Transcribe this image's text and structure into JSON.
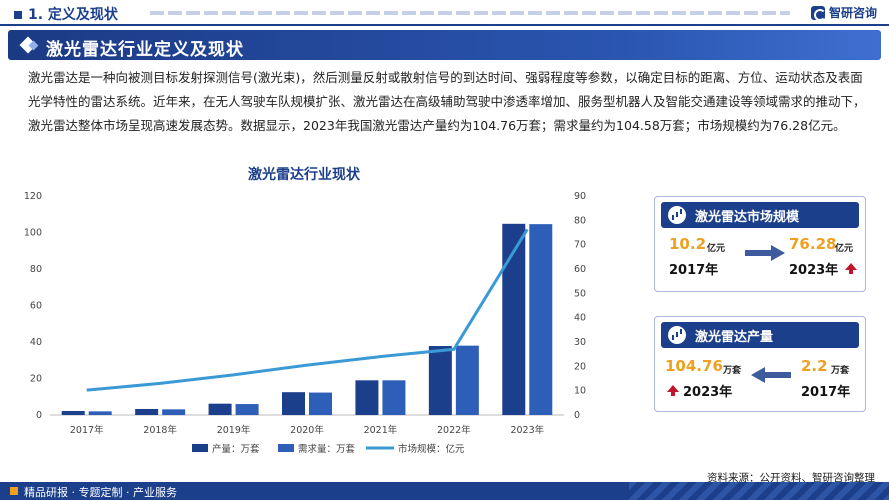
{
  "header": {
    "section_title": "1. 定义及现状",
    "brand": "智研咨询",
    "banner_title": "激光雷达行业定义及现状"
  },
  "intro_text": "激光雷达是一种向被测目标发射探测信号(激光束)，然后测量反射或散射信号的到达时间、强弱程度等参数，以确定目标的距离、方位、运动状态及表面光学特性的雷达系统。近年来，在无人驾驶车队规模扩张、激光雷达在高级辅助驾驶中渗透率增加、服务型机器人及智能交通建设等领域需求的推动下，激光雷达整体市场呈现高速发展态势。数据显示，2023年我国激光雷达产量约为104.76万套；需求量约为104.58万套；市场规模约为76.28亿元。",
  "chart_data": {
    "type": "bar",
    "title": "激光雷达行业现状",
    "categories": [
      "2017年",
      "2018年",
      "2019年",
      "2020年",
      "2021年",
      "2022年",
      "2023年"
    ],
    "series": [
      {
        "name": "产量：万套",
        "type": "bar",
        "axis": "left",
        "color": "#1c3f8c",
        "values": [
          2.2,
          3.3,
          6.2,
          12.5,
          19.0,
          37.8,
          104.76
        ]
      },
      {
        "name": "需求量：万套",
        "type": "bar",
        "axis": "left",
        "color": "#2e5fb8",
        "values": [
          2.0,
          3.1,
          6.0,
          12.3,
          19.0,
          38.0,
          104.58
        ]
      },
      {
        "name": "市场规模：亿元",
        "type": "line",
        "axis": "right",
        "color": "#3b9ad6",
        "values": [
          10.2,
          13.0,
          16.5,
          20.5,
          24.0,
          27.0,
          76.28
        ]
      }
    ],
    "y_left": {
      "min": 0,
      "max": 120,
      "ticks": [
        0,
        20,
        40,
        60,
        80,
        100,
        120
      ]
    },
    "y_right": {
      "min": 0,
      "max": 90,
      "ticks": [
        0,
        10,
        20,
        30,
        40,
        50,
        60,
        70,
        80,
        90
      ]
    },
    "grid": false,
    "legend_position": "bottom"
  },
  "cards": {
    "market": {
      "title": "激光雷达市场规模",
      "from_value": "10.2",
      "from_unit": "亿元",
      "from_year": "2017年",
      "to_value": "76.28",
      "to_unit": "亿元",
      "to_year": "2023年"
    },
    "output": {
      "title": "激光雷达产量",
      "new_value": "104.76",
      "new_unit": "万套",
      "new_year": "2023年",
      "old_value": "2.2",
      "old_unit": "万套",
      "old_year": "2017年"
    }
  },
  "source": "资料来源：公开资料、智研咨询整理",
  "footer": "精品研报 · 专题定制 · 产业服务"
}
